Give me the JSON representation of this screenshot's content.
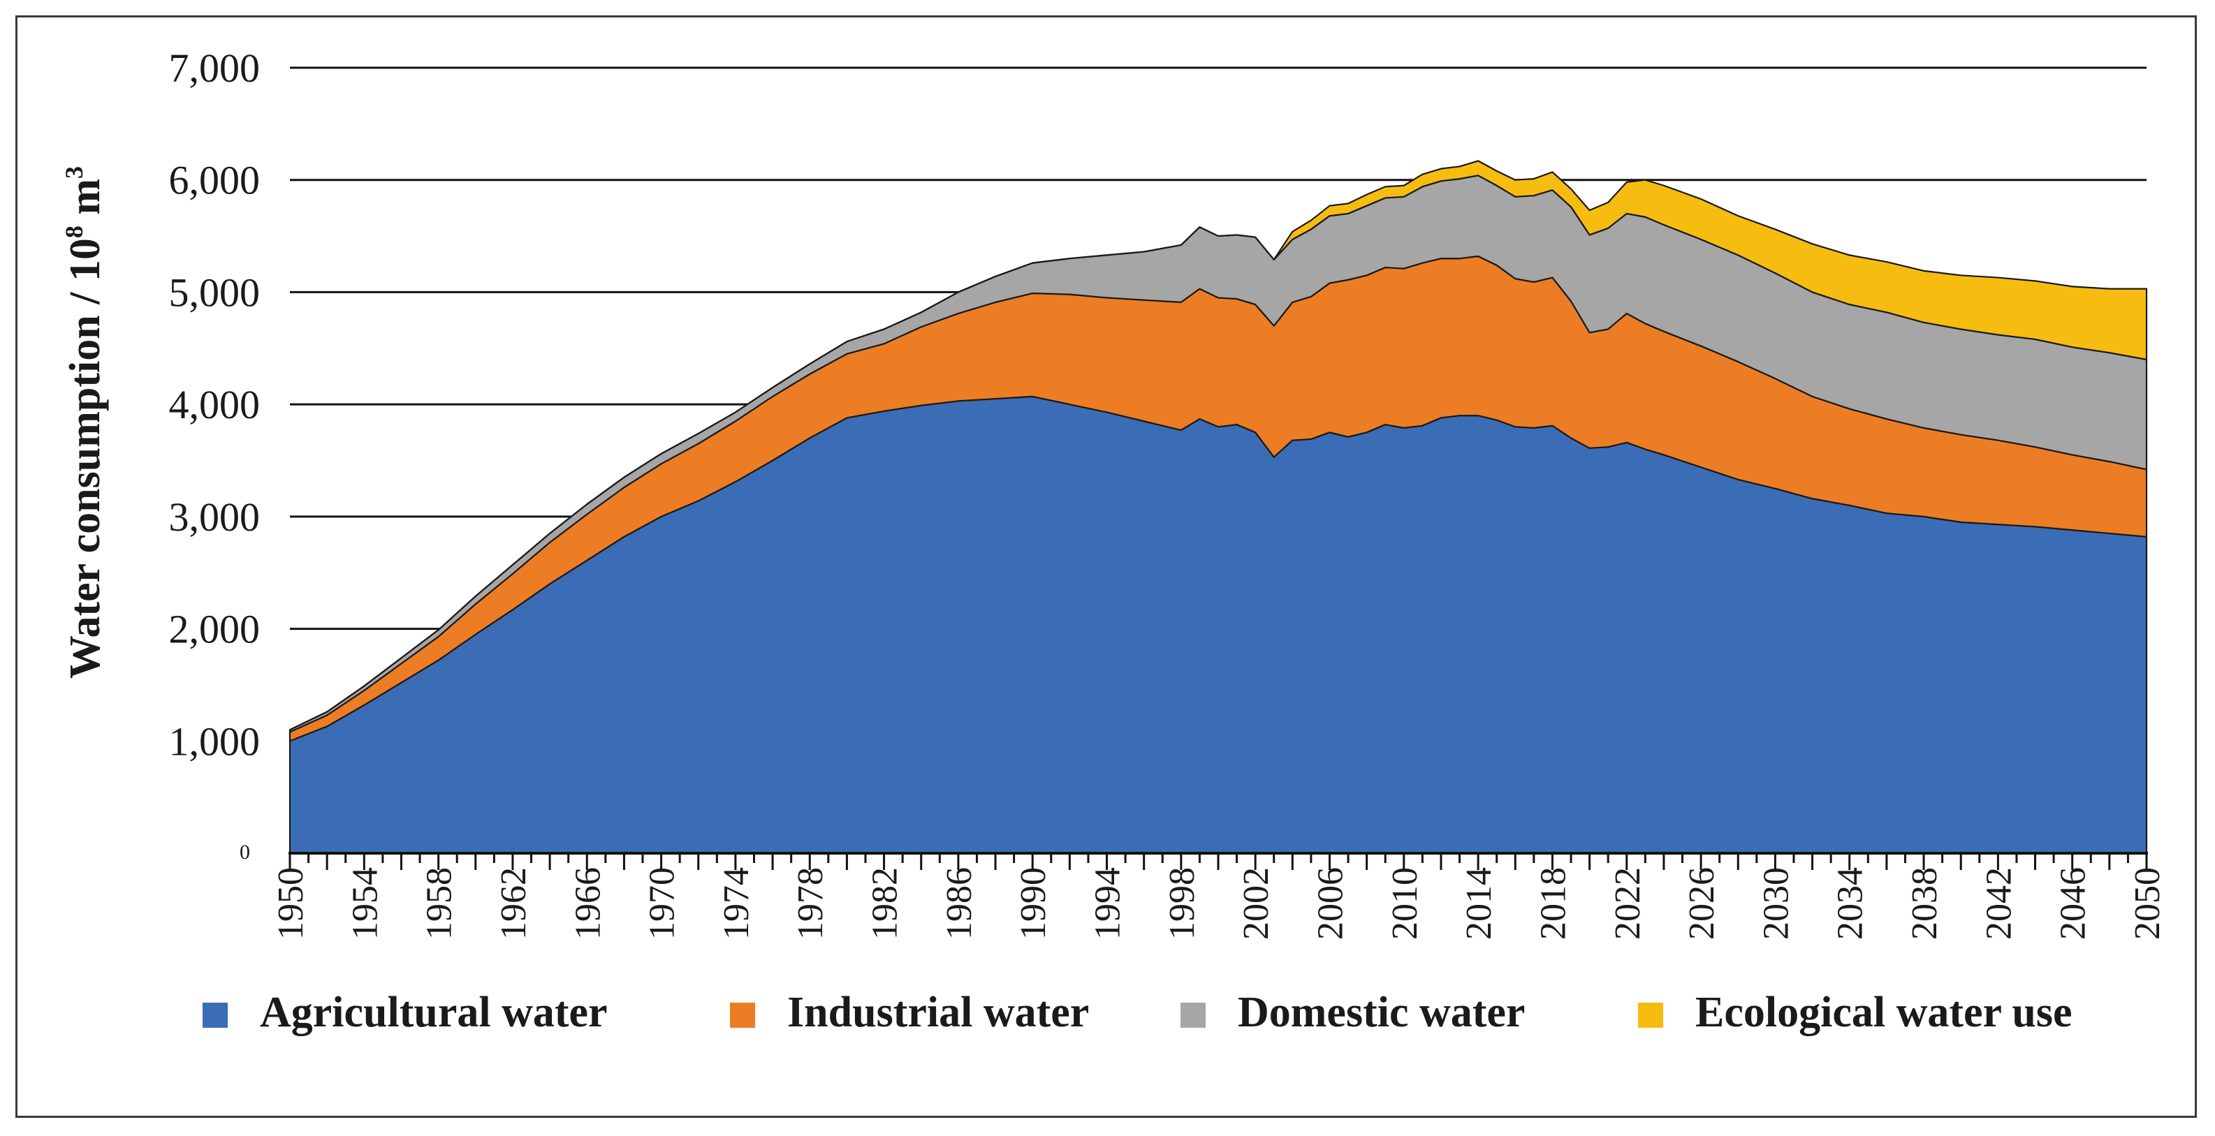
{
  "chart_data": {
    "type": "area",
    "stacked": true,
    "title": "",
    "ylabel": "Water consumption / 10",
    "ylabel_sup1": "8",
    "ylabel_unit": " m",
    "ylabel_sup2": "3",
    "xlabel": "",
    "ylim": [
      0,
      7000
    ],
    "xlim": [
      1950,
      2050
    ],
    "y_ticks": [
      0,
      1000,
      2000,
      3000,
      4000,
      5000,
      6000,
      7000
    ],
    "y_tick_labels": [
      "0",
      "1,000",
      "2,000",
      "3,000",
      "4,000",
      "5,000",
      "6,000",
      "7,000"
    ],
    "x_tick_labels": [
      "1950",
      "1954",
      "1958",
      "1962",
      "1966",
      "1970",
      "1974",
      "1978",
      "1982",
      "1986",
      "1990",
      "1994",
      "1998",
      "2002",
      "2006",
      "2010",
      "2014",
      "2018",
      "2022",
      "2026",
      "2030",
      "2034",
      "2038",
      "2042",
      "2046",
      "2050"
    ],
    "gridlines": "horizontal",
    "legend_position": "bottom",
    "x": [
      1950,
      1952,
      1954,
      1956,
      1958,
      1960,
      1962,
      1964,
      1966,
      1968,
      1970,
      1972,
      1974,
      1976,
      1978,
      1980,
      1982,
      1984,
      1986,
      1988,
      1990,
      1992,
      1994,
      1996,
      1998,
      1999,
      2000,
      2001,
      2002,
      2003,
      2004,
      2005,
      2006,
      2007,
      2008,
      2009,
      2010,
      2011,
      2012,
      2013,
      2014,
      2015,
      2016,
      2017,
      2018,
      2019,
      2020,
      2021,
      2022,
      2023,
      2024,
      2026,
      2028,
      2030,
      2032,
      2034,
      2036,
      2038,
      2040,
      2042,
      2044,
      2046,
      2048,
      2050
    ],
    "series": [
      {
        "name": "Agricultural water",
        "color": "#3A6DB5",
        "values": [
          1000,
          1130,
          1320,
          1520,
          1720,
          1950,
          2170,
          2400,
          2610,
          2820,
          3000,
          3140,
          3310,
          3500,
          3700,
          3880,
          3940,
          3990,
          4030,
          4050,
          4070,
          4000,
          3930,
          3850,
          3770,
          3870,
          3800,
          3820,
          3750,
          3530,
          3680,
          3690,
          3750,
          3710,
          3750,
          3820,
          3790,
          3810,
          3880,
          3900,
          3900,
          3860,
          3800,
          3790,
          3810,
          3700,
          3610,
          3620,
          3660,
          3600,
          3550,
          3440,
          3330,
          3250,
          3160,
          3100,
          3030,
          3000,
          2950,
          2930,
          2910,
          2880,
          2850,
          2820
        ]
      },
      {
        "name": "Industrial water",
        "color": "#ED7D24",
        "values": [
          80,
          100,
          130,
          170,
          210,
          270,
          320,
          370,
          410,
          440,
          470,
          510,
          540,
          570,
          570,
          570,
          600,
          700,
          780,
          860,
          920,
          980,
          1020,
          1080,
          1140,
          1160,
          1150,
          1120,
          1140,
          1170,
          1230,
          1270,
          1330,
          1400,
          1400,
          1400,
          1420,
          1450,
          1420,
          1400,
          1420,
          1380,
          1320,
          1300,
          1320,
          1220,
          1030,
          1050,
          1150,
          1120,
          1100,
          1080,
          1050,
          980,
          910,
          860,
          840,
          790,
          780,
          750,
          710,
          670,
          640,
          600
        ]
      },
      {
        "name": "Domestic water",
        "color": "#A6A6A6",
        "values": [
          20,
          30,
          40,
          50,
          60,
          70,
          80,
          80,
          90,
          90,
          90,
          90,
          80,
          80,
          90,
          110,
          130,
          130,
          190,
          230,
          270,
          320,
          380,
          430,
          510,
          550,
          550,
          570,
          600,
          590,
          560,
          600,
          600,
          590,
          620,
          620,
          640,
          680,
          690,
          710,
          720,
          710,
          730,
          770,
          780,
          840,
          870,
          900,
          890,
          950,
          950,
          950,
          950,
          940,
          930,
          930,
          950,
          940,
          940,
          940,
          960,
          960,
          970,
          980
        ]
      },
      {
        "name": "Ecological water use",
        "color": "#F7BC10",
        "values": [
          0,
          0,
          0,
          0,
          0,
          0,
          0,
          0,
          0,
          0,
          0,
          0,
          0,
          0,
          0,
          0,
          0,
          0,
          0,
          0,
          0,
          0,
          0,
          0,
          0,
          0,
          0,
          0,
          0,
          0,
          70,
          80,
          90,
          90,
          100,
          100,
          100,
          110,
          110,
          110,
          130,
          130,
          150,
          150,
          160,
          160,
          220,
          230,
          280,
          330,
          350,
          360,
          350,
          390,
          430,
          440,
          450,
          460,
          480,
          510,
          520,
          540,
          570,
          630
        ]
      }
    ]
  }
}
